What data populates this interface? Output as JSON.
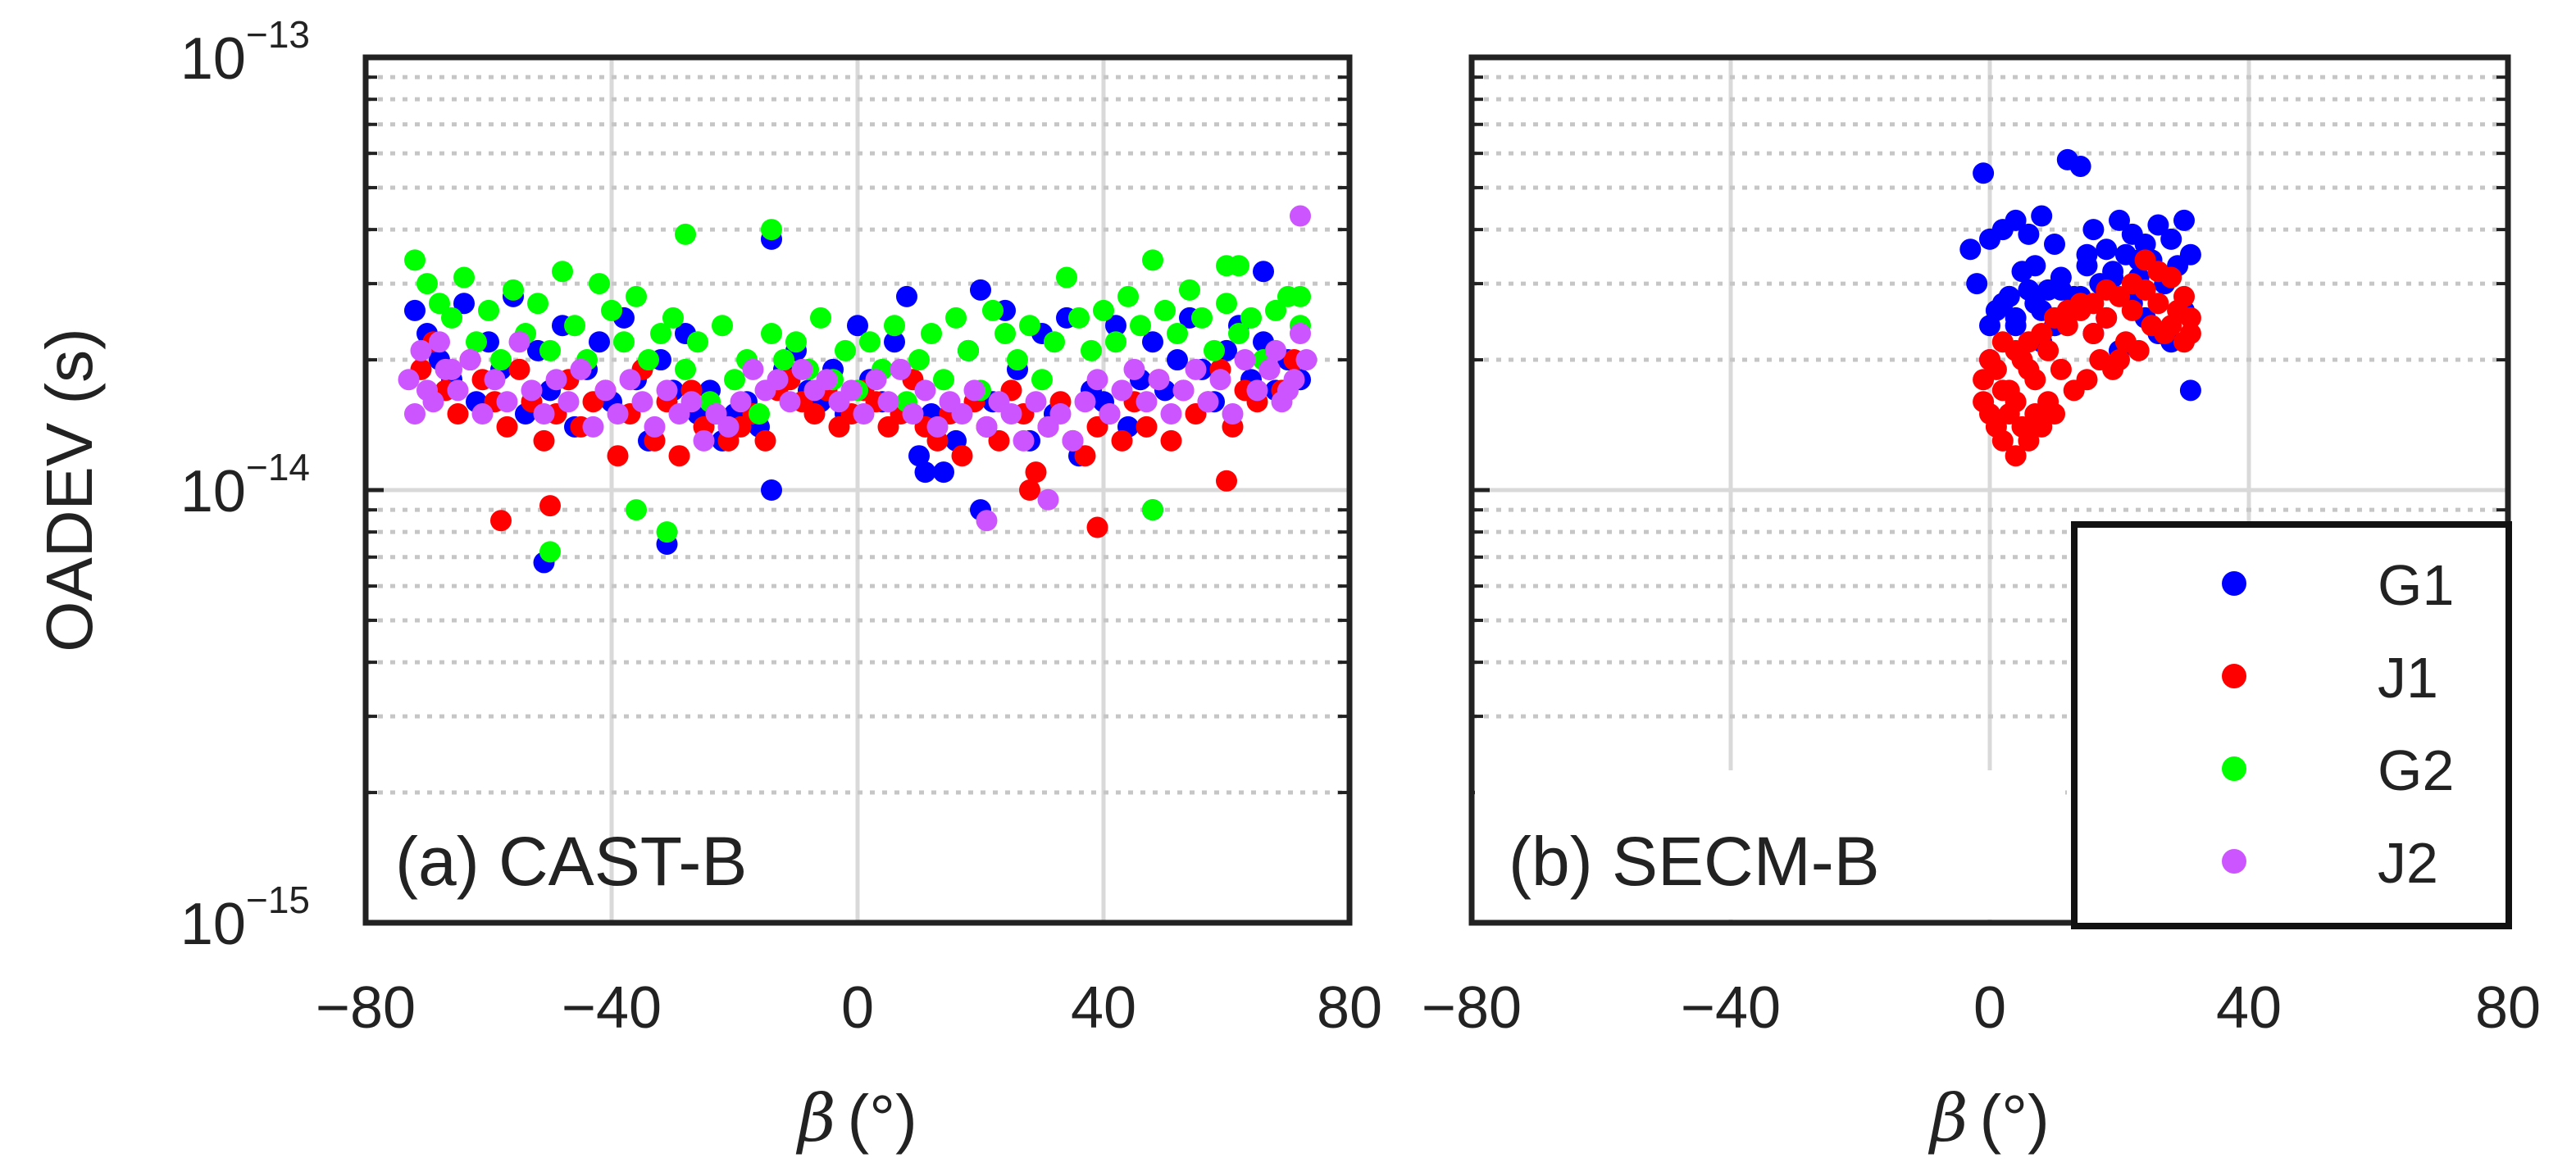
{
  "colors": {
    "G1": "#0000ff",
    "J1": "#ff0000",
    "G2": "#00ff00",
    "J2": "#cc55ff",
    "axis": "#222222",
    "major_grid": "#d9d9d9",
    "minor_grid": "#c6c6c6"
  },
  "ylabel": "OADEV (s)",
  "yticks": [
    {
      "base": "10",
      "exp": "−13"
    },
    {
      "base": "10",
      "exp": "−14"
    },
    {
      "base": "10",
      "exp": "−15"
    }
  ],
  "xlabel_symbol": "β",
  "xlabel_unit": "(°)",
  "legend": [
    "G1",
    "J1",
    "G2",
    "J2"
  ],
  "chart_data": [
    {
      "type": "scatter",
      "panel_label": "(a) CAST-B",
      "xlabel": "β (°)",
      "ylabel": "OADEV (s)",
      "xlim": [
        -80,
        80
      ],
      "ylim": [
        1e-15,
        1e-13
      ],
      "yscale": "log",
      "xticks": [
        "−80",
        "−40",
        "0",
        "40",
        "80"
      ],
      "grid": true,
      "series": [
        {
          "name": "G1",
          "x": [
            -72,
            -70,
            -68,
            -66,
            -64,
            -62,
            -60,
            -58,
            -56,
            -54,
            -52,
            -50,
            -48,
            -46,
            -44,
            -42,
            -40,
            -38,
            -36,
            -34,
            -32,
            -30,
            -28,
            -26,
            -24,
            -22,
            -20,
            -18,
            -16,
            -14,
            -12,
            -10,
            -8,
            -6,
            -4,
            -2,
            0,
            2,
            4,
            6,
            8,
            10,
            12,
            14,
            16,
            18,
            20,
            22,
            24,
            26,
            28,
            30,
            32,
            34,
            36,
            38,
            40,
            42,
            44,
            46,
            48,
            50,
            52,
            54,
            56,
            58,
            60,
            62,
            64,
            66,
            68,
            70,
            72,
            -51,
            -31,
            -14,
            11,
            20,
            48,
            66
          ],
          "y": [
            2.6e-14,
            2.3e-14,
            2e-14,
            1.8e-14,
            2.7e-14,
            1.6e-14,
            2.2e-14,
            1.9e-14,
            2.8e-14,
            1.5e-14,
            2.1e-14,
            1.7e-14,
            2.4e-14,
            1.4e-14,
            1.9e-14,
            2.2e-14,
            1.6e-14,
            2.5e-14,
            1.8e-14,
            1.3e-14,
            2e-14,
            1.7e-14,
            2.3e-14,
            1.5e-14,
            1.7e-14,
            1.3e-14,
            1.5e-14,
            1.6e-14,
            1.4e-14,
            3.8e-14,
            1.9e-14,
            2.1e-14,
            1.7e-14,
            1.6e-14,
            1.9e-14,
            1.5e-14,
            2.4e-14,
            1.8e-14,
            1.6e-14,
            2.2e-14,
            2.8e-14,
            1.2e-14,
            1.5e-14,
            1.1e-14,
            1.3e-14,
            2.1e-14,
            2.9e-14,
            1.6e-14,
            2.6e-14,
            1.9e-14,
            1.3e-14,
            2.3e-14,
            1.5e-14,
            2.5e-14,
            1.2e-14,
            1.7e-14,
            1.6e-14,
            2.4e-14,
            1.4e-14,
            1.8e-14,
            2.2e-14,
            1.7e-14,
            2e-14,
            2.5e-14,
            1.9e-14,
            1.6e-14,
            2.1e-14,
            2.4e-14,
            1.8e-14,
            2.2e-14,
            1.7e-14,
            2e-14,
            1.8e-14,
            6.8e-15,
            7.5e-15,
            1e-14,
            1.1e-14,
            9e-15,
            9e-15,
            3.2e-14
          ]
        },
        {
          "name": "J1",
          "x": [
            -71,
            -69,
            -67,
            -65,
            -63,
            -61,
            -59,
            -57,
            -55,
            -53,
            -51,
            -49,
            -47,
            -45,
            -43,
            -41,
            -39,
            -37,
            -35,
            -33,
            -31,
            -29,
            -27,
            -25,
            -23,
            -21,
            -19,
            -17,
            -15,
            -13,
            -11,
            -9,
            -7,
            -5,
            -3,
            -1,
            1,
            3,
            5,
            7,
            9,
            11,
            13,
            15,
            17,
            19,
            21,
            23,
            25,
            27,
            29,
            31,
            33,
            35,
            37,
            39,
            41,
            43,
            45,
            47,
            49,
            51,
            53,
            55,
            57,
            59,
            61,
            63,
            65,
            67,
            69,
            71,
            -58,
            -50,
            28,
            39,
            60
          ],
          "y": [
            1.9e-14,
            2.2e-14,
            1.7e-14,
            1.5e-14,
            2e-14,
            1.8e-14,
            1.6e-14,
            1.4e-14,
            1.9e-14,
            1.6e-14,
            1.3e-14,
            1.5e-14,
            1.8e-14,
            1.4e-14,
            1.6e-14,
            1.7e-14,
            1.2e-14,
            1.5e-14,
            1.9e-14,
            1.3e-14,
            1.6e-14,
            1.2e-14,
            1.7e-14,
            1.4e-14,
            1.5e-14,
            1.3e-14,
            1.4e-14,
            1.5e-14,
            1.3e-14,
            1.7e-14,
            1.8e-14,
            1.6e-14,
            1.5e-14,
            1.7e-14,
            1.4e-14,
            1.5e-14,
            1.7e-14,
            1.6e-14,
            1.4e-14,
            1.5e-14,
            1.8e-14,
            1.4e-14,
            1.3e-14,
            1.5e-14,
            1.2e-14,
            1.6e-14,
            1.4e-14,
            1.3e-14,
            1.7e-14,
            1.5e-14,
            1.1e-14,
            1.4e-14,
            1.6e-14,
            1.3e-14,
            1.2e-14,
            1.4e-14,
            1.5e-14,
            1.3e-14,
            1.6e-14,
            1.4e-14,
            1.8e-14,
            1.3e-14,
            1.7e-14,
            1.5e-14,
            1.6e-14,
            1.9e-14,
            1.4e-14,
            1.7e-14,
            1.6e-14,
            1.9e-14,
            1.7e-14,
            2e-14,
            8.5e-15,
            9.2e-15,
            1e-14,
            8.2e-15,
            1.05e-14
          ]
        },
        {
          "name": "G2",
          "x": [
            -72,
            -70,
            -68,
            -66,
            -64,
            -62,
            -60,
            -58,
            -56,
            -54,
            -52,
            -50,
            -48,
            -46,
            -44,
            -42,
            -40,
            -38,
            -36,
            -34,
            -32,
            -30,
            -28,
            -26,
            -24,
            -22,
            -20,
            -18,
            -16,
            -14,
            -12,
            -10,
            -8,
            -6,
            -4,
            -2,
            0,
            2,
            4,
            6,
            8,
            10,
            12,
            14,
            16,
            18,
            20,
            22,
            24,
            26,
            28,
            30,
            32,
            34,
            36,
            38,
            40,
            42,
            44,
            46,
            48,
            50,
            52,
            54,
            56,
            58,
            60,
            62,
            64,
            66,
            68,
            70,
            72,
            -50,
            -36,
            -31,
            -28,
            -14,
            48,
            60,
            62,
            72
          ],
          "y": [
            3.4e-14,
            3e-14,
            2.7e-14,
            2.5e-14,
            3.1e-14,
            2.2e-14,
            2.6e-14,
            2e-14,
            2.9e-14,
            2.3e-14,
            2.7e-14,
            2.1e-14,
            3.2e-14,
            2.4e-14,
            2e-14,
            3e-14,
            2.6e-14,
            2.2e-14,
            2.8e-14,
            2e-14,
            2.3e-14,
            2.5e-14,
            1.9e-14,
            2.2e-14,
            1.6e-14,
            2.4e-14,
            1.8e-14,
            2e-14,
            1.5e-14,
            2.3e-14,
            2e-14,
            2.2e-14,
            1.9e-14,
            2.5e-14,
            1.8e-14,
            2.1e-14,
            1.7e-14,
            2.2e-14,
            1.9e-14,
            2.4e-14,
            1.6e-14,
            2e-14,
            2.3e-14,
            1.8e-14,
            2.5e-14,
            2.1e-14,
            1.7e-14,
            2.6e-14,
            2.3e-14,
            2e-14,
            2.4e-14,
            1.8e-14,
            2.2e-14,
            3.1e-14,
            2.5e-14,
            2.1e-14,
            2.6e-14,
            2.2e-14,
            2.8e-14,
            2.4e-14,
            3.4e-14,
            2.6e-14,
            2.3e-14,
            2.9e-14,
            2.5e-14,
            2.1e-14,
            2.7e-14,
            2.3e-14,
            2.5e-14,
            2e-14,
            2.6e-14,
            2.8e-14,
            2.4e-14,
            7.2e-15,
            9e-15,
            8e-15,
            3.9e-14,
            4e-14,
            9e-15,
            3.3e-14,
            3.3e-14,
            2.8e-14
          ]
        },
        {
          "name": "J2",
          "x": [
            -73,
            -71,
            -69,
            -67,
            -65,
            -63,
            -61,
            -59,
            -57,
            -55,
            -53,
            -51,
            -49,
            -47,
            -45,
            -43,
            -41,
            -39,
            -37,
            -35,
            -33,
            -31,
            -29,
            -27,
            -25,
            -23,
            -21,
            -19,
            -17,
            -15,
            -13,
            -11,
            -9,
            -7,
            -5,
            -3,
            -1,
            1,
            3,
            5,
            7,
            9,
            11,
            13,
            15,
            17,
            19,
            21,
            23,
            25,
            27,
            29,
            31,
            33,
            35,
            37,
            39,
            41,
            43,
            45,
            47,
            49,
            51,
            53,
            55,
            57,
            59,
            61,
            63,
            65,
            67,
            69,
            71,
            73,
            -72,
            -70,
            -68,
            -66,
            68,
            70,
            72,
            21,
            31,
            72
          ],
          "y": [
            1.8e-14,
            2.1e-14,
            1.6e-14,
            1.9e-14,
            1.7e-14,
            2e-14,
            1.5e-14,
            1.8e-14,
            1.6e-14,
            2.2e-14,
            1.7e-14,
            1.5e-14,
            1.8e-14,
            1.6e-14,
            1.9e-14,
            1.4e-14,
            1.7e-14,
            1.5e-14,
            1.8e-14,
            1.6e-14,
            1.4e-14,
            1.7e-14,
            1.5e-14,
            1.6e-14,
            1.3e-14,
            1.5e-14,
            1.4e-14,
            1.6e-14,
            1.9e-14,
            1.7e-14,
            1.8e-14,
            1.6e-14,
            1.9e-14,
            1.7e-14,
            1.8e-14,
            1.6e-14,
            1.7e-14,
            1.5e-14,
            1.8e-14,
            1.6e-14,
            1.9e-14,
            1.5e-14,
            1.7e-14,
            1.4e-14,
            1.6e-14,
            1.5e-14,
            1.7e-14,
            1.4e-14,
            1.6e-14,
            1.5e-14,
            1.3e-14,
            1.6e-14,
            1.4e-14,
            1.5e-14,
            1.3e-14,
            1.6e-14,
            1.8e-14,
            1.5e-14,
            1.7e-14,
            1.9e-14,
            1.6e-14,
            1.8e-14,
            1.5e-14,
            1.7e-14,
            1.9e-14,
            1.6e-14,
            1.8e-14,
            1.5e-14,
            2e-14,
            1.7e-14,
            1.9e-14,
            1.6e-14,
            1.8e-14,
            2e-14,
            1.5e-14,
            1.7e-14,
            2.2e-14,
            1.9e-14,
            2.1e-14,
            1.7e-14,
            2.3e-14,
            8.5e-15,
            9.5e-15,
            4.3e-14
          ]
        }
      ]
    },
    {
      "type": "scatter",
      "panel_label": "(b) SECM-B",
      "xlabel": "β (°)",
      "xlim": [
        -80,
        80
      ],
      "ylim": [
        1e-15,
        1e-13
      ],
      "yscale": "log",
      "xticks": [
        "−80",
        "−40",
        "0",
        "40",
        "80"
      ],
      "grid": true,
      "legend": "bottom-right",
      "series": [
        {
          "name": "G1",
          "x": [
            -1,
            12,
            14,
            8,
            4,
            2,
            -3,
            0,
            6,
            10,
            16,
            18,
            20,
            22,
            24,
            26,
            28,
            30,
            31,
            29,
            27,
            25,
            23,
            21,
            19,
            17,
            15,
            13,
            11,
            9,
            7,
            5,
            3,
            1,
            -2,
            0,
            2,
            4,
            6,
            8,
            10,
            14,
            18,
            22,
            26,
            30,
            31,
            28,
            24,
            20,
            16,
            12,
            8,
            4,
            0,
            3,
            7,
            11,
            15,
            19,
            23,
            27
          ],
          "y": [
            5.4e-14,
            5.8e-14,
            5.6e-14,
            4.3e-14,
            4.2e-14,
            4e-14,
            3.6e-14,
            3.8e-14,
            3.9e-14,
            3.7e-14,
            4e-14,
            3.6e-14,
            4.2e-14,
            3.9e-14,
            3.7e-14,
            4.1e-14,
            3.8e-14,
            4.2e-14,
            3.5e-14,
            3.3e-14,
            3e-14,
            3.4e-14,
            3.1e-14,
            3.5e-14,
            3.2e-14,
            3e-14,
            3.3e-14,
            2.8e-14,
            3.1e-14,
            2.9e-14,
            2.7e-14,
            3.2e-14,
            2.8e-14,
            2.6e-14,
            3e-14,
            2.4e-14,
            2.7e-14,
            2.5e-14,
            2.9e-14,
            2.6e-14,
            2.4e-14,
            2.8e-14,
            2.5e-14,
            2.7e-14,
            2.3e-14,
            2.6e-14,
            1.7e-14,
            2.2e-14,
            2.5e-14,
            2.1e-14,
            2.3e-14,
            2.6e-14,
            2.2e-14,
            2.4e-14,
            2e-14,
            2.8e-14,
            3.3e-14,
            2.9e-14,
            3.5e-14,
            3.1e-14,
            3.4e-14,
            3e-14
          ]
        },
        {
          "name": "J1",
          "x": [
            -1,
            0,
            1,
            2,
            3,
            4,
            5,
            6,
            7,
            8,
            9,
            10,
            -1,
            1,
            3,
            5,
            7,
            9,
            11,
            13,
            15,
            17,
            19,
            21,
            23,
            25,
            27,
            29,
            31,
            30,
            28,
            26,
            24,
            22,
            20,
            18,
            16,
            14,
            12,
            10,
            8,
            6,
            4,
            2,
            0,
            2,
            4,
            6,
            12,
            14,
            18,
            22,
            26,
            30,
            24,
            28,
            31,
            20,
            16
          ],
          "y": [
            1.6e-14,
            1.5e-14,
            1.4e-14,
            1.3e-14,
            1.5e-14,
            1.2e-14,
            1.4e-14,
            1.3e-14,
            1.5e-14,
            1.4e-14,
            1.6e-14,
            1.5e-14,
            1.8e-14,
            1.9e-14,
            1.7e-14,
            2e-14,
            1.8e-14,
            2.1e-14,
            1.9e-14,
            1.7e-14,
            1.8e-14,
            2e-14,
            1.9e-14,
            2.2e-14,
            2.1e-14,
            2.4e-14,
            2.3e-14,
            2.6e-14,
            2.5e-14,
            2.2e-14,
            2.4e-14,
            2.7e-14,
            2.9e-14,
            2.6e-14,
            2.8e-14,
            2.5e-14,
            2.7e-14,
            2.6e-14,
            2.4e-14,
            2.5e-14,
            2.3e-14,
            2.2e-14,
            2.1e-14,
            2.2e-14,
            2e-14,
            1.7e-14,
            1.6e-14,
            1.9e-14,
            2.6e-14,
            2.7e-14,
            2.9e-14,
            3e-14,
            3.2e-14,
            2.8e-14,
            3.4e-14,
            3.1e-14,
            2.3e-14,
            2e-14,
            2.3e-14
          ]
        }
      ]
    }
  ]
}
